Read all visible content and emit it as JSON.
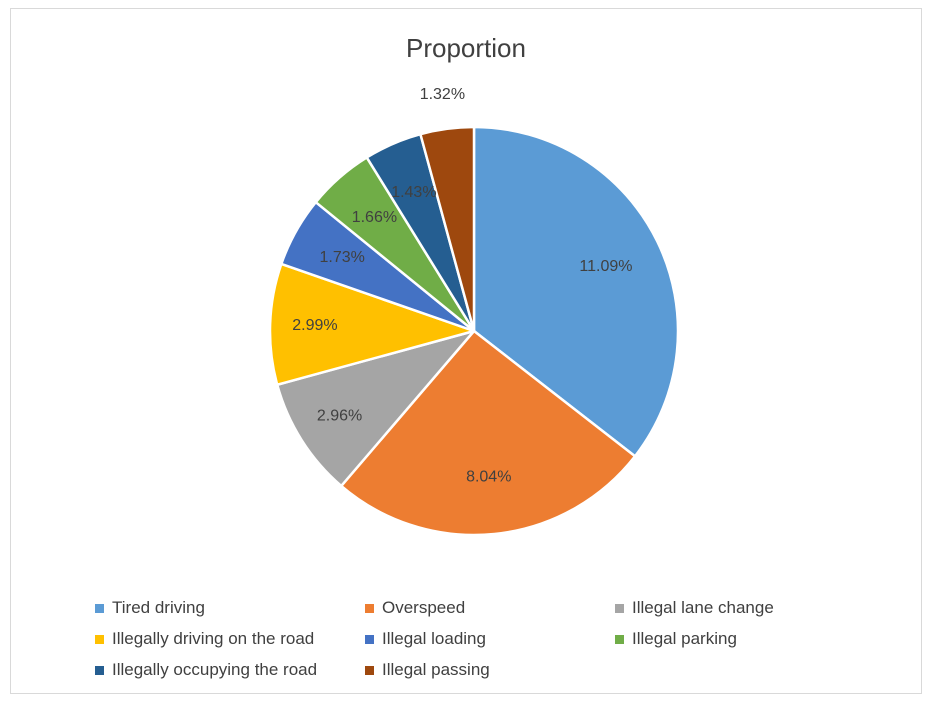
{
  "chart_data": {
    "type": "pie",
    "title": "Proportion",
    "categories": [
      "Tired driving",
      "Overspeed",
      "Illegal lane change",
      "Illegally driving on the road",
      "Illegal loading",
      "Illegal parking",
      "Illegally occupying the road",
      "Illegal passing"
    ],
    "values": [
      11.09,
      8.04,
      2.96,
      2.99,
      1.73,
      1.66,
      1.43,
      1.32
    ],
    "labels": [
      "11.09%",
      "8.04%",
      "2.96%",
      "2.99%",
      "1.73%",
      "1.66%",
      "1.43%",
      "1.32%"
    ],
    "colors": [
      "#5b9bd5",
      "#ed7d31",
      "#a5a5a5",
      "#ffc000",
      "#4472c4",
      "#70ad47",
      "#255e91",
      "#9e480e"
    ],
    "legend_position": "bottom",
    "start_angle": "12 o'clock",
    "direction": "clockwise"
  }
}
